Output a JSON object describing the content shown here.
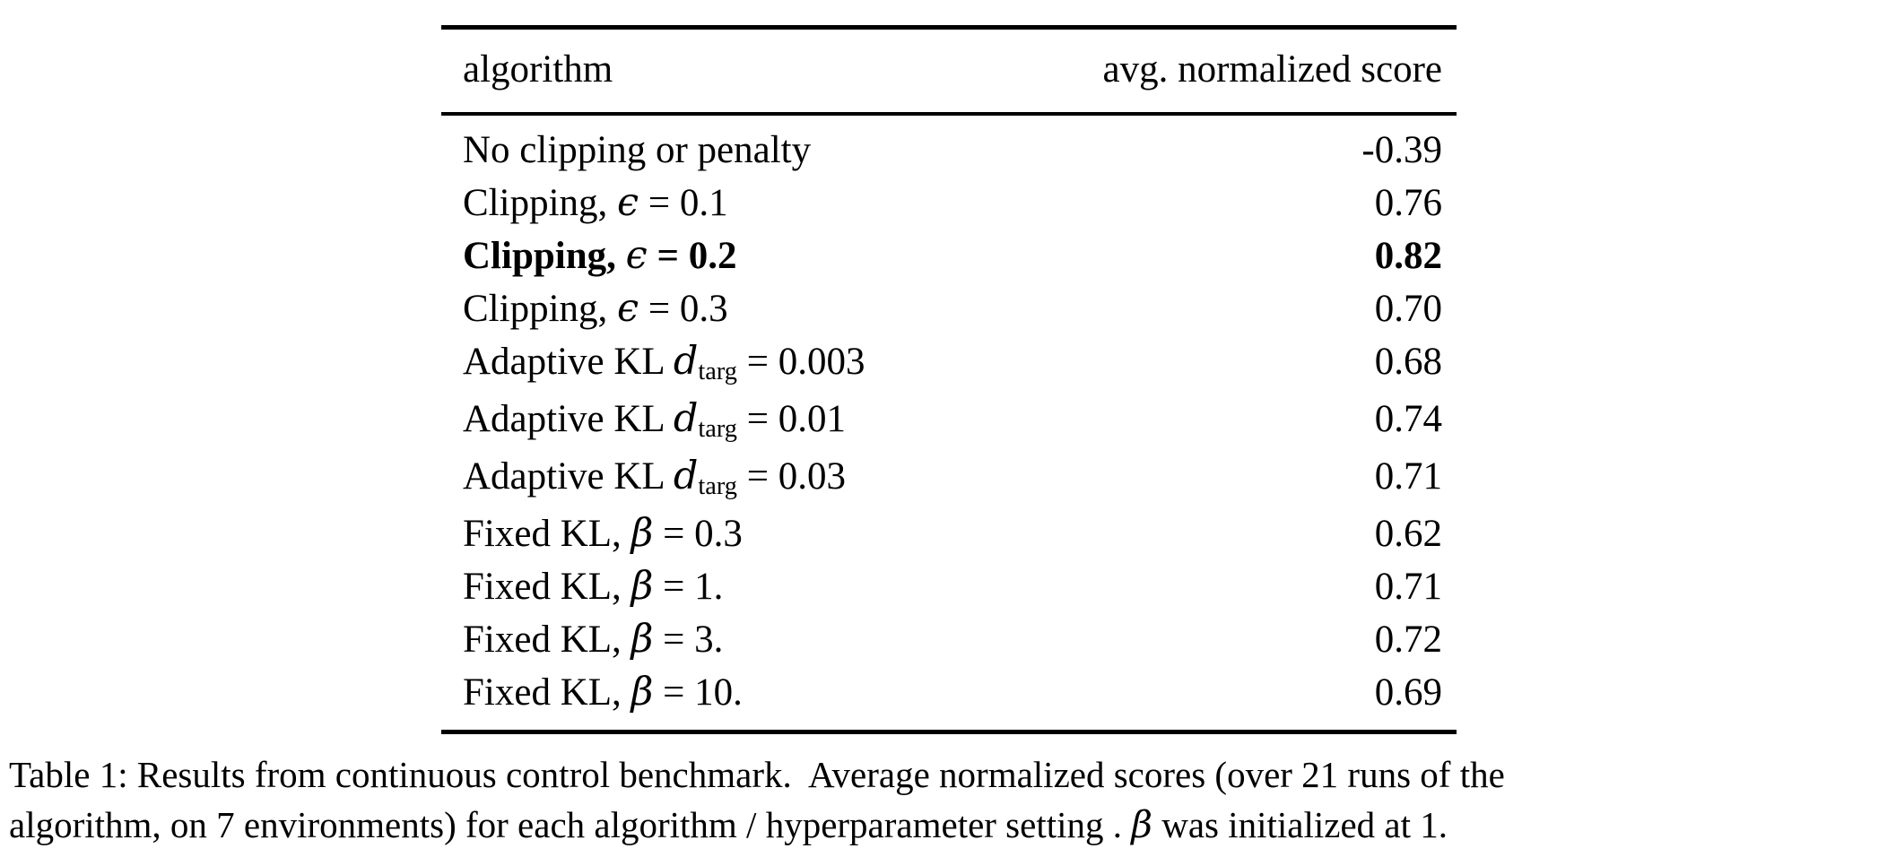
{
  "colors": {
    "background": "#ffffff",
    "text": "#000000",
    "rule": "#000000"
  },
  "table": {
    "header": {
      "algorithm": "algorithm",
      "score": "avg. normalized score"
    },
    "rows": [
      {
        "bold": false,
        "score": "-0.39",
        "label": [
          {
            "t": "text",
            "v": "No clipping or penalty"
          }
        ]
      },
      {
        "bold": false,
        "score": "0.76",
        "label": [
          {
            "t": "text",
            "v": "Clipping, "
          },
          {
            "t": "math",
            "v": "ϵ"
          },
          {
            "t": "text",
            "v": " = 0.1"
          }
        ]
      },
      {
        "bold": true,
        "score": "0.82",
        "label": [
          {
            "t": "text",
            "v": "Clipping, "
          },
          {
            "t": "math",
            "v": "ϵ"
          },
          {
            "t": "text",
            "v": " = 0.2"
          }
        ]
      },
      {
        "bold": false,
        "score": "0.70",
        "label": [
          {
            "t": "text",
            "v": "Clipping, "
          },
          {
            "t": "math",
            "v": "ϵ"
          },
          {
            "t": "text",
            "v": " = 0.3"
          }
        ]
      },
      {
        "bold": false,
        "score": "0.68",
        "label": [
          {
            "t": "text",
            "v": "Adaptive KL "
          },
          {
            "t": "math",
            "v": "d"
          },
          {
            "t": "sub",
            "v": "targ"
          },
          {
            "t": "text",
            "v": " = 0.003"
          }
        ]
      },
      {
        "bold": false,
        "score": "0.74",
        "label": [
          {
            "t": "text",
            "v": "Adaptive KL "
          },
          {
            "t": "math",
            "v": "d"
          },
          {
            "t": "sub",
            "v": "targ"
          },
          {
            "t": "text",
            "v": " = 0.01"
          }
        ]
      },
      {
        "bold": false,
        "score": "0.71",
        "label": [
          {
            "t": "text",
            "v": "Adaptive KL "
          },
          {
            "t": "math",
            "v": "d"
          },
          {
            "t": "sub",
            "v": "targ"
          },
          {
            "t": "text",
            "v": " = 0.03"
          }
        ]
      },
      {
        "bold": false,
        "score": "0.62",
        "label": [
          {
            "t": "text",
            "v": "Fixed KL, "
          },
          {
            "t": "math",
            "v": "β"
          },
          {
            "t": "text",
            "v": " = 0.3"
          }
        ]
      },
      {
        "bold": false,
        "score": "0.71",
        "label": [
          {
            "t": "text",
            "v": "Fixed KL, "
          },
          {
            "t": "math",
            "v": "β"
          },
          {
            "t": "text",
            "v": " = 1."
          }
        ]
      },
      {
        "bold": false,
        "score": "0.72",
        "label": [
          {
            "t": "text",
            "v": "Fixed KL, "
          },
          {
            "t": "math",
            "v": "β"
          },
          {
            "t": "text",
            "v": " = 3."
          }
        ]
      },
      {
        "bold": false,
        "score": "0.69",
        "label": [
          {
            "t": "text",
            "v": "Fixed KL, "
          },
          {
            "t": "math",
            "v": "β"
          },
          {
            "t": "text",
            "v": " = 10."
          }
        ]
      }
    ]
  },
  "caption": {
    "segments": [
      {
        "t": "text",
        "v": "Table 1: Results from continuous control benchmark.  Average normalized scores (over 21 runs of the"
      },
      {
        "t": "br"
      },
      {
        "t": "text",
        "v": "algorithm, on 7 environments) for each algorithm / hyperparameter setting . "
      },
      {
        "t": "math",
        "v": "β"
      },
      {
        "t": "text",
        "v": " was initialized at 1."
      }
    ]
  },
  "chart_data": {
    "type": "table",
    "title": "Results from continuous control benchmark",
    "columns": [
      "algorithm",
      "avg. normalized score"
    ],
    "categories": [
      "No clipping or penalty",
      "Clipping, ϵ = 0.1",
      "Clipping, ϵ = 0.2",
      "Clipping, ϵ = 0.3",
      "Adaptive KL d_targ = 0.003",
      "Adaptive KL d_targ = 0.01",
      "Adaptive KL d_targ = 0.03",
      "Fixed KL, β = 0.3",
      "Fixed KL, β = 1.",
      "Fixed KL, β = 3.",
      "Fixed KL, β = 10."
    ],
    "values": [
      -0.39,
      0.76,
      0.82,
      0.7,
      0.68,
      0.74,
      0.71,
      0.62,
      0.71,
      0.72,
      0.69
    ],
    "best_row": "Clipping, ϵ = 0.2"
  }
}
